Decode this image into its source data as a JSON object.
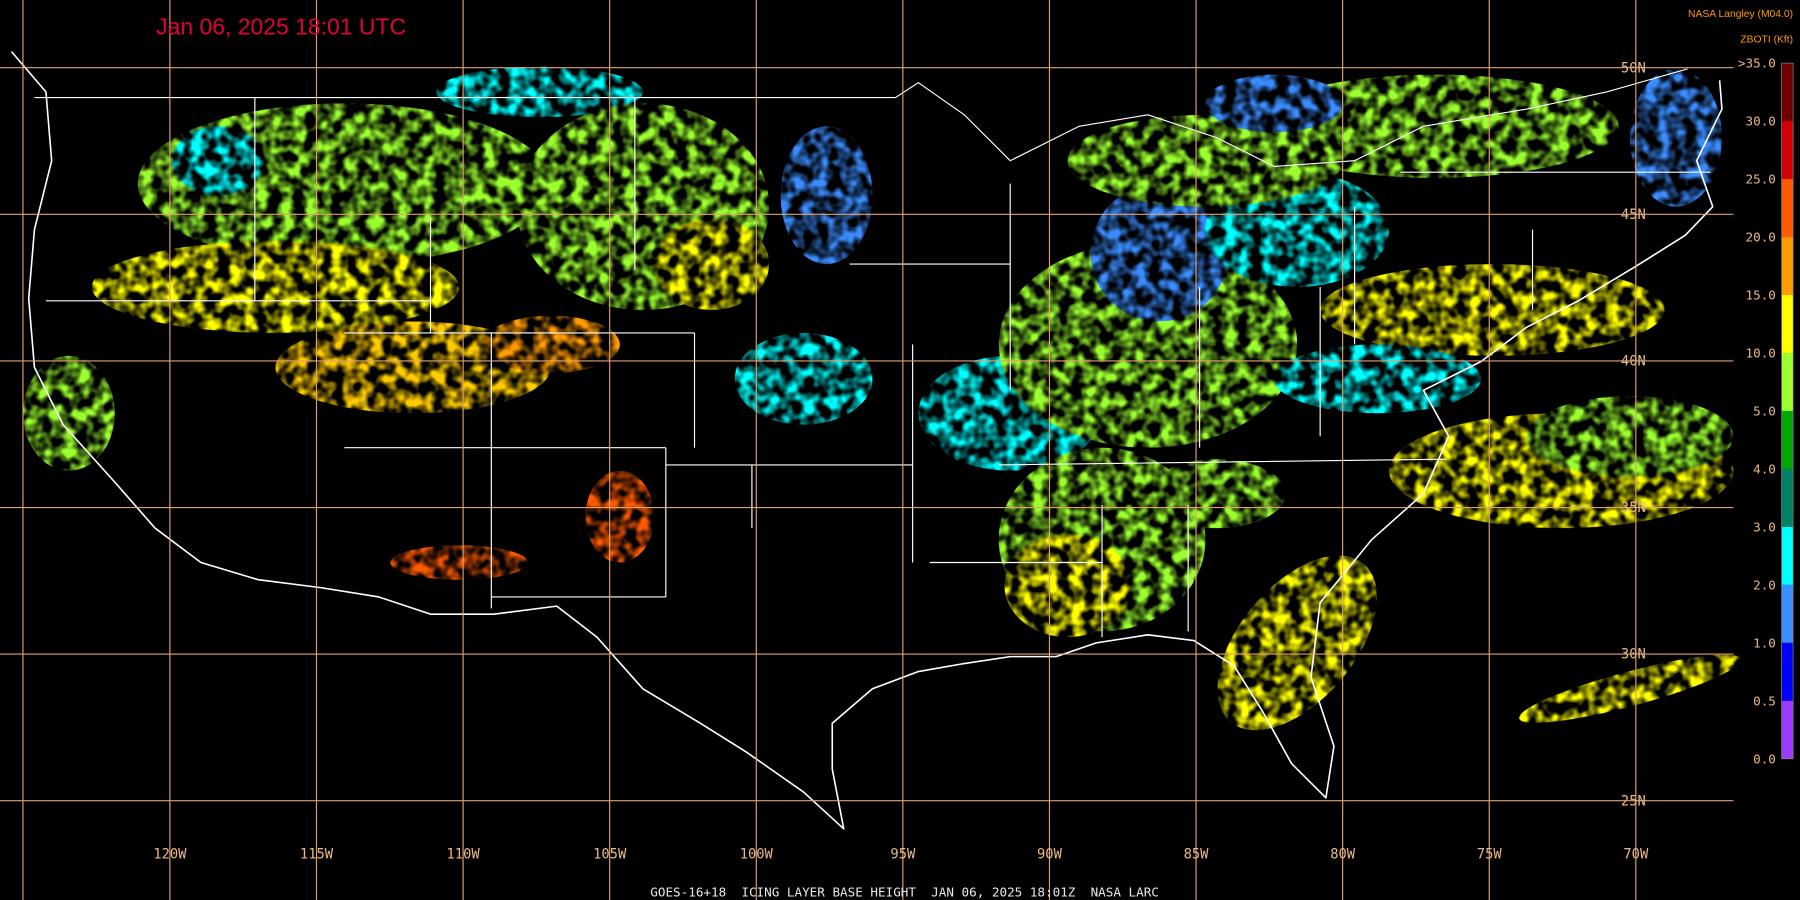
{
  "header": {
    "title": "Jan 06, 2025 18:01 UTC",
    "source": "NASA Langley (M04.0)",
    "product": "ZBOTI (Kft)"
  },
  "colorbar": {
    "labels": [
      ">35.0",
      "30.0",
      "25.0",
      "20.0",
      "15.0",
      "10.0",
      "5.0",
      "4.0",
      "3.0",
      "2.0",
      "1.0",
      "0.5",
      "0.0"
    ],
    "colors": [
      "#6e0000",
      "#d40000",
      "#ff5a00",
      "#ff9a00",
      "#ffff00",
      "#9cff2e",
      "#00a800",
      "#008064",
      "#00ffff",
      "#3a8cff",
      "#0000ff",
      "#9a3cff"
    ]
  },
  "latitude_labels": [
    "50N",
    "45N",
    "40N",
    "35N",
    "30N",
    "25N"
  ],
  "longitude_labels": [
    "120W",
    "115W",
    "110W",
    "105W",
    "100W",
    "95W",
    "90W",
    "85W",
    "80W",
    "75W",
    "70W"
  ],
  "footer": "GOES-16+18  ICING LAYER BASE HEIGHT  JAN 06, 2025 18:01Z  NASA LARC"
}
